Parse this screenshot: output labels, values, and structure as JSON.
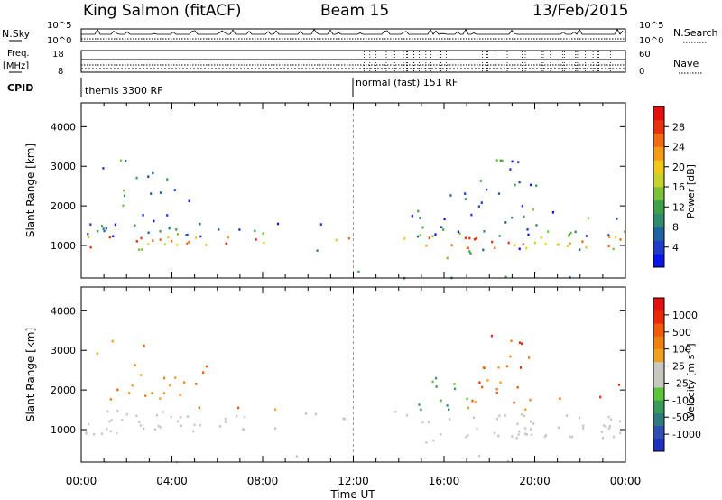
{
  "header": {
    "radar": "King Salmon (fitACF)",
    "beam": "Beam 15",
    "date": "13/Feb/2015"
  },
  "summary": {
    "nsky_label": "N.Sky",
    "nsky_ticks": [
      "10^5",
      "10^0"
    ],
    "nsearch_label": "N.Search",
    "nsearch_ticks": [
      "10^5",
      "10^0"
    ],
    "freq_label": [
      "Freq.",
      "[MHz]"
    ],
    "freq_ticks": [
      "18",
      "8"
    ],
    "nave_label": "Nave",
    "nave_ticks": [
      "60",
      "0"
    ],
    "cpid_label": "CPID",
    "cpid_modes": [
      {
        "name": "themis 3300 RF",
        "start_hour": 0
      },
      {
        "name": "normal (fast) 151 RF",
        "start_hour": 12
      }
    ]
  },
  "chart_data": [
    {
      "type": "heatmap",
      "panel": "power",
      "ylabel": "Slant Range [km]",
      "ylim": [
        180,
        4600
      ],
      "yticks": [
        1000,
        2000,
        3000,
        4000
      ],
      "xlim": [
        0,
        24
      ],
      "colorbar": {
        "label": "Power [dB]",
        "ticks": [
          "28",
          "24",
          "20",
          "16",
          "12",
          "8",
          "4"
        ],
        "range": [
          0,
          30
        ],
        "colors": [
          "#0a14e6",
          "#1f3cc8",
          "#1e64a0",
          "#2f8a6e",
          "#3fa04a",
          "#7ac23a",
          "#c8d22a",
          "#f0c818",
          "#f59a14",
          "#f26a12",
          "#e8320f",
          "#e60f0f"
        ]
      }
    },
    {
      "type": "heatmap",
      "panel": "velocity",
      "ylabel": "Slant Range [km]",
      "ylim": [
        180,
        4600
      ],
      "yticks": [
        1000,
        2000,
        3000,
        4000
      ],
      "xlim": [
        0,
        24
      ],
      "xticks": [
        "00:00",
        "04:00",
        "08:00",
        "12:00",
        "16:00",
        "20:00",
        "00:00"
      ],
      "xlabel": "Time UT",
      "colorbar": {
        "label": "Velocity [m s^-1]",
        "ticks": [
          "1000",
          "500",
          "100",
          "25",
          "-25",
          "-100",
          "-500",
          "-1000"
        ],
        "colors": [
          "#1f2fc0",
          "#2f4fb0",
          "#2f7a7a",
          "#3a9a5a",
          "#5ec23a",
          "#c8c8c0",
          "#c8c8c0",
          "#f0a020",
          "#f08010",
          "#f05a0a",
          "#e82a0a",
          "#e60f0f"
        ]
      }
    }
  ]
}
